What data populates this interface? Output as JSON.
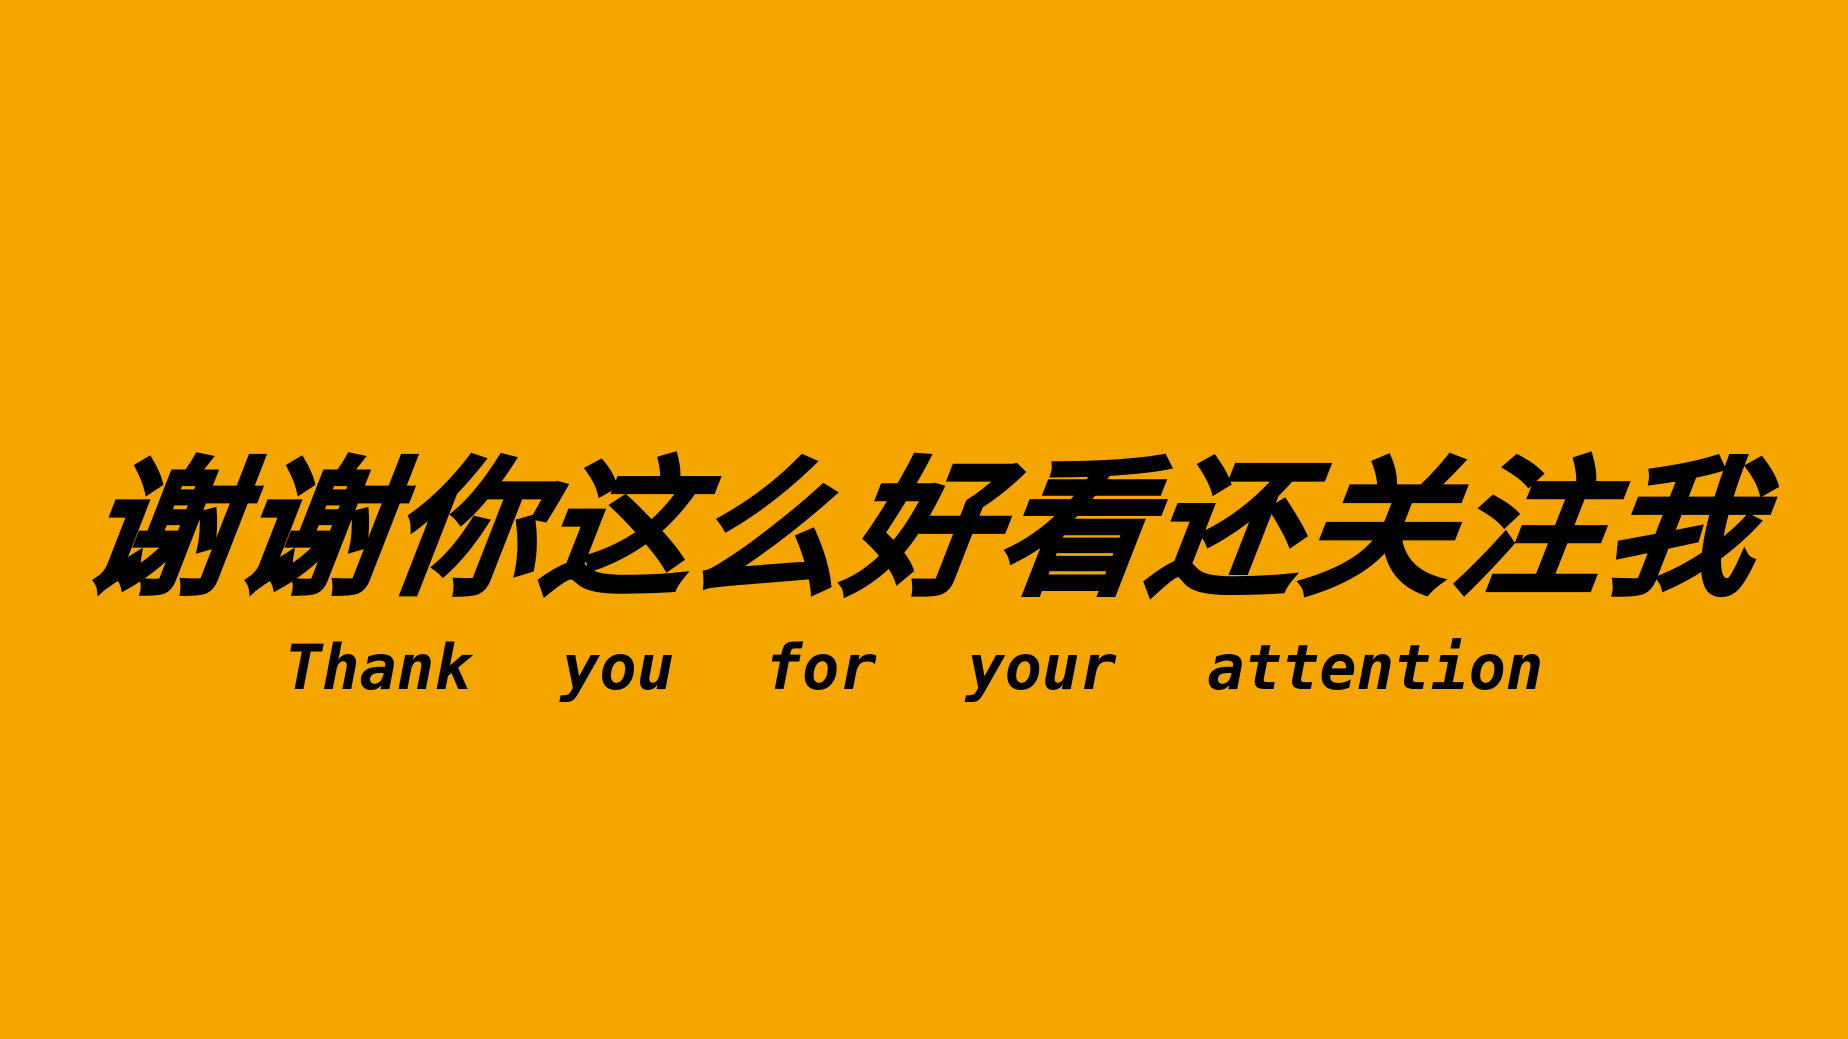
{
  "slide": {
    "background_color": "#F5A500",
    "text_color": "#000000",
    "title_cn": "谢谢你这么好看还关注我",
    "subtitle_en": "Thank  you  for  your  attention"
  }
}
